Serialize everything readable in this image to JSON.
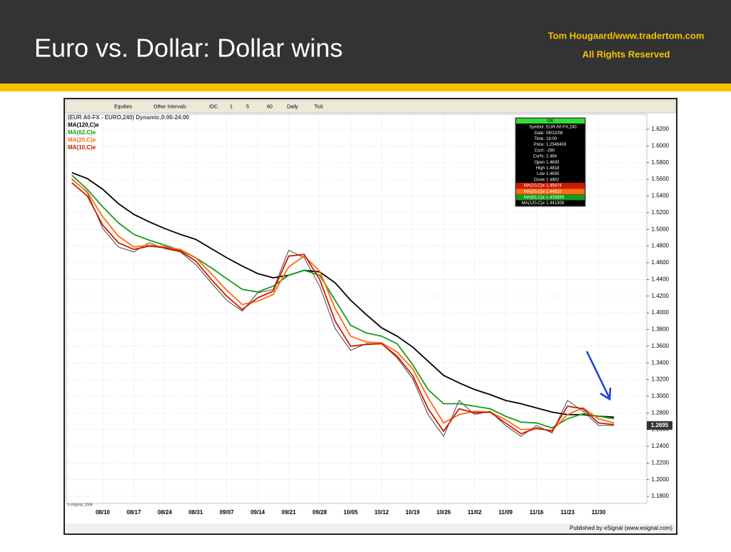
{
  "header": {
    "title": "Euro vs. Dollar: Dollar wins",
    "author": "Tom Hougaard/www.tradertom.com",
    "rights": "All Rights Reserved"
  },
  "toolbar": [
    "Equities",
    "Other Intervals",
    "IDC",
    "1",
    "5",
    "60",
    "Daily",
    "Tick"
  ],
  "info_box": {
    "status": "OK",
    "rows": [
      [
        "Symbol:",
        "EUR A0-FX,240"
      ],
      [
        "Date:",
        "09/22/08"
      ],
      [
        "Time:",
        "16:00"
      ],
      [
        "Price:",
        "1.2549403"
      ],
      [
        "Csr#:",
        "-290"
      ],
      [
        "Csr%:",
        "2.464"
      ],
      [
        "Open",
        "1.4630"
      ],
      [
        "High",
        "1.4818"
      ],
      [
        "Low",
        "1.4630"
      ],
      [
        "Close",
        "1.4802"
      ],
      [
        "MA(10,C)e",
        "1.45474"
      ],
      [
        "MA(20,C)e",
        "1.44822"
      ],
      [
        "MA(62,C)e",
        "1.433989"
      ],
      [
        "MA(120,C)e",
        "1.441308"
      ]
    ]
  },
  "footer": {
    "copyright": "© eSignal, 2008",
    "publisher": "Published by eSignal (www.esignal.com)"
  },
  "chart_data": {
    "type": "line",
    "categories": [
      null,
      null,
      "08/10",
      null,
      "08/17",
      null,
      "08/24",
      null,
      "08/31",
      null,
      "09/07",
      null,
      "09/14",
      null,
      "09/21",
      null,
      "09/28",
      null,
      "10/05",
      null,
      "10/12",
      null,
      "10/19",
      null,
      "10/26",
      null,
      "11/02",
      null,
      "11/09",
      null,
      "11/16",
      null,
      "11/23",
      null,
      "11/30",
      null
    ],
    "series": [
      {
        "name": "(EUR A0-FX - EURO,240) Dynamic,0:00-24:00",
        "color": "#444444",
        "values": [
          1.561,
          1.544,
          1.501,
          1.479,
          1.473,
          1.484,
          1.477,
          1.473,
          1.458,
          1.436,
          1.415,
          1.402,
          1.424,
          1.428,
          1.475,
          1.466,
          1.432,
          1.381,
          1.355,
          1.363,
          1.363,
          1.346,
          1.321,
          1.278,
          1.252,
          1.295,
          1.278,
          1.282,
          1.265,
          1.252,
          1.265,
          1.256,
          1.295,
          1.282,
          1.265,
          1.265
        ]
      },
      {
        "name": "MA(120,C)e",
        "color": "#000000",
        "values": [
          1.568,
          1.561,
          1.548,
          1.531,
          1.518,
          1.509,
          1.501,
          1.494,
          1.488,
          1.477,
          1.466,
          1.456,
          1.447,
          1.442,
          1.445,
          1.451,
          1.449,
          1.436,
          1.415,
          1.398,
          1.382,
          1.372,
          1.359,
          1.342,
          1.325,
          1.316,
          1.308,
          1.302,
          1.295,
          1.291,
          1.286,
          1.281,
          1.278,
          1.278,
          1.276,
          1.275
        ]
      },
      {
        "name": "MA(62,C)e",
        "color": "#1a9a1a",
        "values": [
          1.565,
          1.548,
          1.527,
          1.508,
          1.494,
          1.487,
          1.481,
          1.475,
          1.466,
          1.454,
          1.441,
          1.428,
          1.425,
          1.432,
          1.445,
          1.451,
          1.445,
          1.415,
          1.385,
          1.376,
          1.372,
          1.363,
          1.338,
          1.308,
          1.291,
          1.291,
          1.288,
          1.285,
          1.276,
          1.269,
          1.268,
          1.262,
          1.273,
          1.279,
          1.276,
          1.273
        ]
      },
      {
        "name": "MA(20,C)e",
        "color": "#ff6a13",
        "values": [
          1.56,
          1.545,
          1.515,
          1.492,
          1.479,
          1.481,
          1.479,
          1.476,
          1.466,
          1.447,
          1.427,
          1.41,
          1.414,
          1.422,
          1.455,
          1.468,
          1.45,
          1.405,
          1.372,
          1.365,
          1.364,
          1.353,
          1.333,
          1.298,
          1.268,
          1.278,
          1.282,
          1.281,
          1.272,
          1.26,
          1.261,
          1.259,
          1.278,
          1.286,
          1.273,
          1.268
        ]
      },
      {
        "name": "MA(10,C)e",
        "color": "#cc1a00",
        "values": [
          1.556,
          1.54,
          1.505,
          1.484,
          1.476,
          1.48,
          1.478,
          1.474,
          1.462,
          1.44,
          1.42,
          1.404,
          1.418,
          1.426,
          1.468,
          1.47,
          1.44,
          1.39,
          1.36,
          1.362,
          1.363,
          1.348,
          1.325,
          1.285,
          1.258,
          1.285,
          1.28,
          1.281,
          1.268,
          1.255,
          1.262,
          1.258,
          1.288,
          1.285,
          1.268,
          1.266
        ]
      }
    ],
    "last_price_label": "1.2695",
    "ylim": [
      1.1715,
      1.638
    ],
    "yticks": [
      {
        "value": 1.18,
        "label": "1.1800"
      },
      {
        "value": 1.2,
        "label": "1.2000"
      },
      {
        "value": 1.22,
        "label": "1.2200"
      },
      {
        "value": 1.24,
        "label": "1.2400"
      },
      {
        "value": 1.26,
        "label": "1.2600"
      },
      {
        "value": 1.28,
        "label": "1.2800"
      },
      {
        "value": 1.3,
        "label": "1.3000"
      },
      {
        "value": 1.32,
        "label": "1.3200"
      },
      {
        "value": 1.34,
        "label": "1.3400"
      },
      {
        "value": 1.36,
        "label": "1.3600"
      },
      {
        "value": 1.38,
        "label": "1.3800"
      },
      {
        "value": 1.4,
        "label": "1.4000"
      },
      {
        "value": 1.42,
        "label": "1.4200"
      },
      {
        "value": 1.44,
        "label": "1.4400"
      },
      {
        "value": 1.46,
        "label": "1.4600"
      },
      {
        "value": 1.48,
        "label": "1.4800"
      },
      {
        "value": 1.5,
        "label": "1.5000"
      },
      {
        "value": 1.52,
        "label": "1.5200"
      },
      {
        "value": 1.54,
        "label": "1.5400"
      },
      {
        "value": 1.56,
        "label": "1.5600"
      },
      {
        "value": 1.58,
        "label": "1.5800"
      },
      {
        "value": 1.6,
        "label": "1.6000"
      },
      {
        "value": 1.62,
        "label": "1.6200"
      }
    ],
    "grid": true
  }
}
